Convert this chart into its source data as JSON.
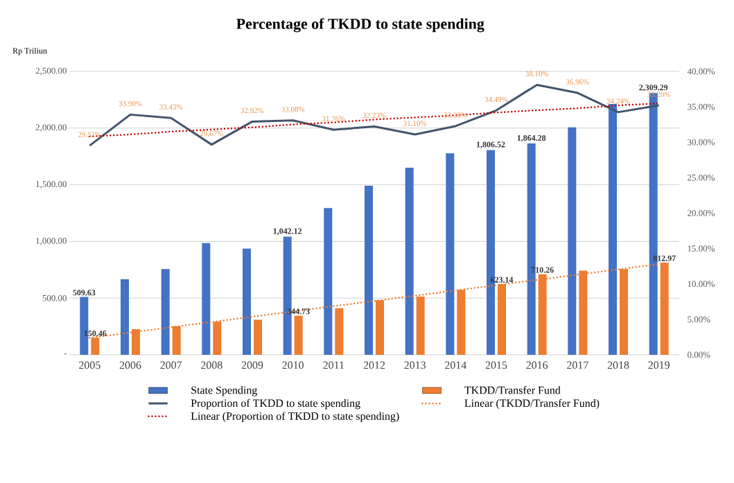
{
  "chart_data": {
    "type": "bar",
    "title": "Percentage of TKDD to state spending",
    "ylabel": "Rp Triliun",
    "categories": [
      "2005",
      "2006",
      "2007",
      "2008",
      "2009",
      "2010",
      "2011",
      "2012",
      "2013",
      "2014",
      "2015",
      "2016",
      "2017",
      "2018",
      "2019"
    ],
    "series": [
      {
        "name": "State Spending",
        "color": "#4472c4",
        "values": [
          509.63,
          667,
          757,
          985,
          937,
          1042.12,
          1295,
          1491,
          1650,
          1777,
          1806.52,
          1864.28,
          2007,
          2213,
          2309.29
        ],
        "value_labels": [
          "509.63",
          null,
          null,
          null,
          null,
          "1,042.12",
          null,
          null,
          null,
          null,
          "1,806.52",
          "1,864.28",
          null,
          null,
          "2,309.29"
        ]
      },
      {
        "name": "TKDD/Transfer Fund",
        "color": "#ed7d31",
        "values": [
          150.46,
          226,
          253,
          292,
          309,
          344.73,
          411,
          481,
          513,
          573,
          623.14,
          710.26,
          742,
          757,
          812.97
        ],
        "value_labels": [
          "150.46",
          null,
          null,
          null,
          null,
          "344.73",
          null,
          null,
          null,
          null,
          "623.14",
          "710.26",
          null,
          null,
          "812.97"
        ]
      },
      {
        "name": "Proportion of TKDD to state spending",
        "type": "line",
        "axis": "y2",
        "color": "#44546a",
        "values": [
          29.52,
          33.9,
          33.43,
          29.67,
          32.92,
          33.08,
          31.76,
          32.23,
          31.1,
          32.28,
          34.49,
          38.1,
          36.96,
          34.24,
          35.2
        ],
        "value_labels": [
          "29.52%",
          "33.90%",
          "33.43%",
          "29.67%",
          "32.92%",
          "33.08%",
          "31.76%",
          "32.23%",
          "31.10%",
          "32.28%",
          "34.49%",
          "38.10%",
          "36.96%",
          "34.24%",
          "35.20%"
        ]
      },
      {
        "name": "Linear (TKDD/Transfer Fund)",
        "type": "line",
        "line_style": "dotted",
        "color": "#ed7d31",
        "values": [
          150,
          196,
          243,
          289,
          336,
          382,
          429,
          475,
          521,
          568,
          614,
          661,
          707,
          754,
          800
        ]
      },
      {
        "name": "Linear (Proportion of TKDD to state spending)",
        "type": "line",
        "axis": "y2",
        "line_style": "dotted",
        "color": "#c00000",
        "values": [
          30.8,
          31.1,
          31.5,
          31.8,
          32.1,
          32.5,
          32.8,
          33.2,
          33.5,
          33.8,
          34.2,
          34.5,
          34.8,
          35.2,
          35.5
        ]
      }
    ],
    "ylim": [
      0,
      2500
    ],
    "yticks": [
      {
        "value": 0,
        "label": "-"
      },
      {
        "value": 500,
        "label": "500.00"
      },
      {
        "value": 1000,
        "label": "1,000.00"
      },
      {
        "value": 1500,
        "label": "1,500.00"
      },
      {
        "value": 2000,
        "label": "2,000.00"
      },
      {
        "value": 2500,
        "label": "2,500.00"
      }
    ],
    "y2lim": [
      0,
      40
    ],
    "y2ticks": [
      {
        "value": 0,
        "label": "0.00%"
      },
      {
        "value": 5,
        "label": "5.00%"
      },
      {
        "value": 10,
        "label": "10.00%"
      },
      {
        "value": 15,
        "label": "15.00%"
      },
      {
        "value": 20,
        "label": "20.00%"
      },
      {
        "value": 25,
        "label": "25.00%"
      },
      {
        "value": 30,
        "label": "30.00%"
      },
      {
        "value": 35,
        "label": "35.00%"
      },
      {
        "value": 40,
        "label": "40.00%"
      }
    ],
    "grid": "y",
    "legend": "bottom",
    "marker": "none"
  }
}
